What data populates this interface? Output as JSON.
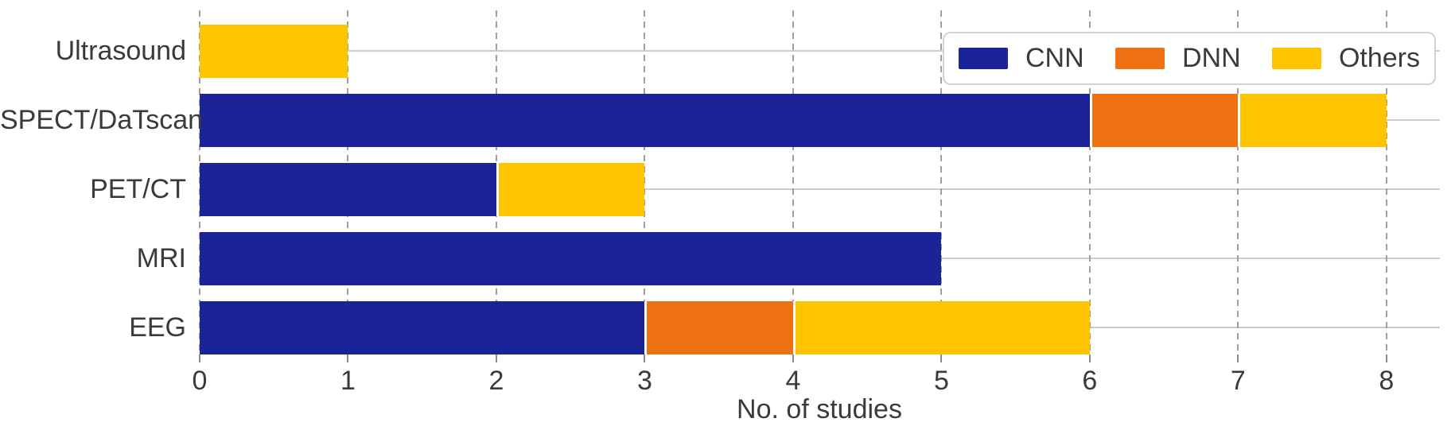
{
  "chart_data": {
    "type": "bar",
    "orientation": "horizontal",
    "stacked": true,
    "title": "",
    "xlabel": "No. of studies",
    "ylabel": "",
    "categories": [
      "Ultrasound",
      "SPECT/DaTscan",
      "PET/CT",
      "MRI",
      "EEG"
    ],
    "series": [
      {
        "name": "CNN",
        "color": "#1A2397",
        "values": [
          0,
          6,
          2,
          5,
          3
        ]
      },
      {
        "name": "DNN",
        "color": "#EE7112",
        "values": [
          0,
          1,
          0,
          0,
          1
        ]
      },
      {
        "name": "Others",
        "color": "#FFC400",
        "values": [
          1,
          1,
          1,
          0,
          2
        ]
      }
    ],
    "totals": [
      1,
      8,
      3,
      5,
      6
    ],
    "xlim": [
      0,
      8.36
    ],
    "xticks": [
      "0",
      "1",
      "2",
      "3",
      "4",
      "5",
      "6",
      "7",
      "8"
    ],
    "legend": {
      "position": "upper right",
      "labels": [
        "CNN",
        "DNN",
        "Others"
      ]
    },
    "grid": {
      "vertical": "dashed",
      "horizontal": "solid"
    },
    "colors": {
      "text": "#3A3A3A",
      "grid_dashed": "#9E9E9E",
      "grid_solid": "#CDCDCD",
      "tick": "#8A8A8A",
      "legend_border": "#D3D3D3",
      "background": "#FFFFFF"
    }
  }
}
